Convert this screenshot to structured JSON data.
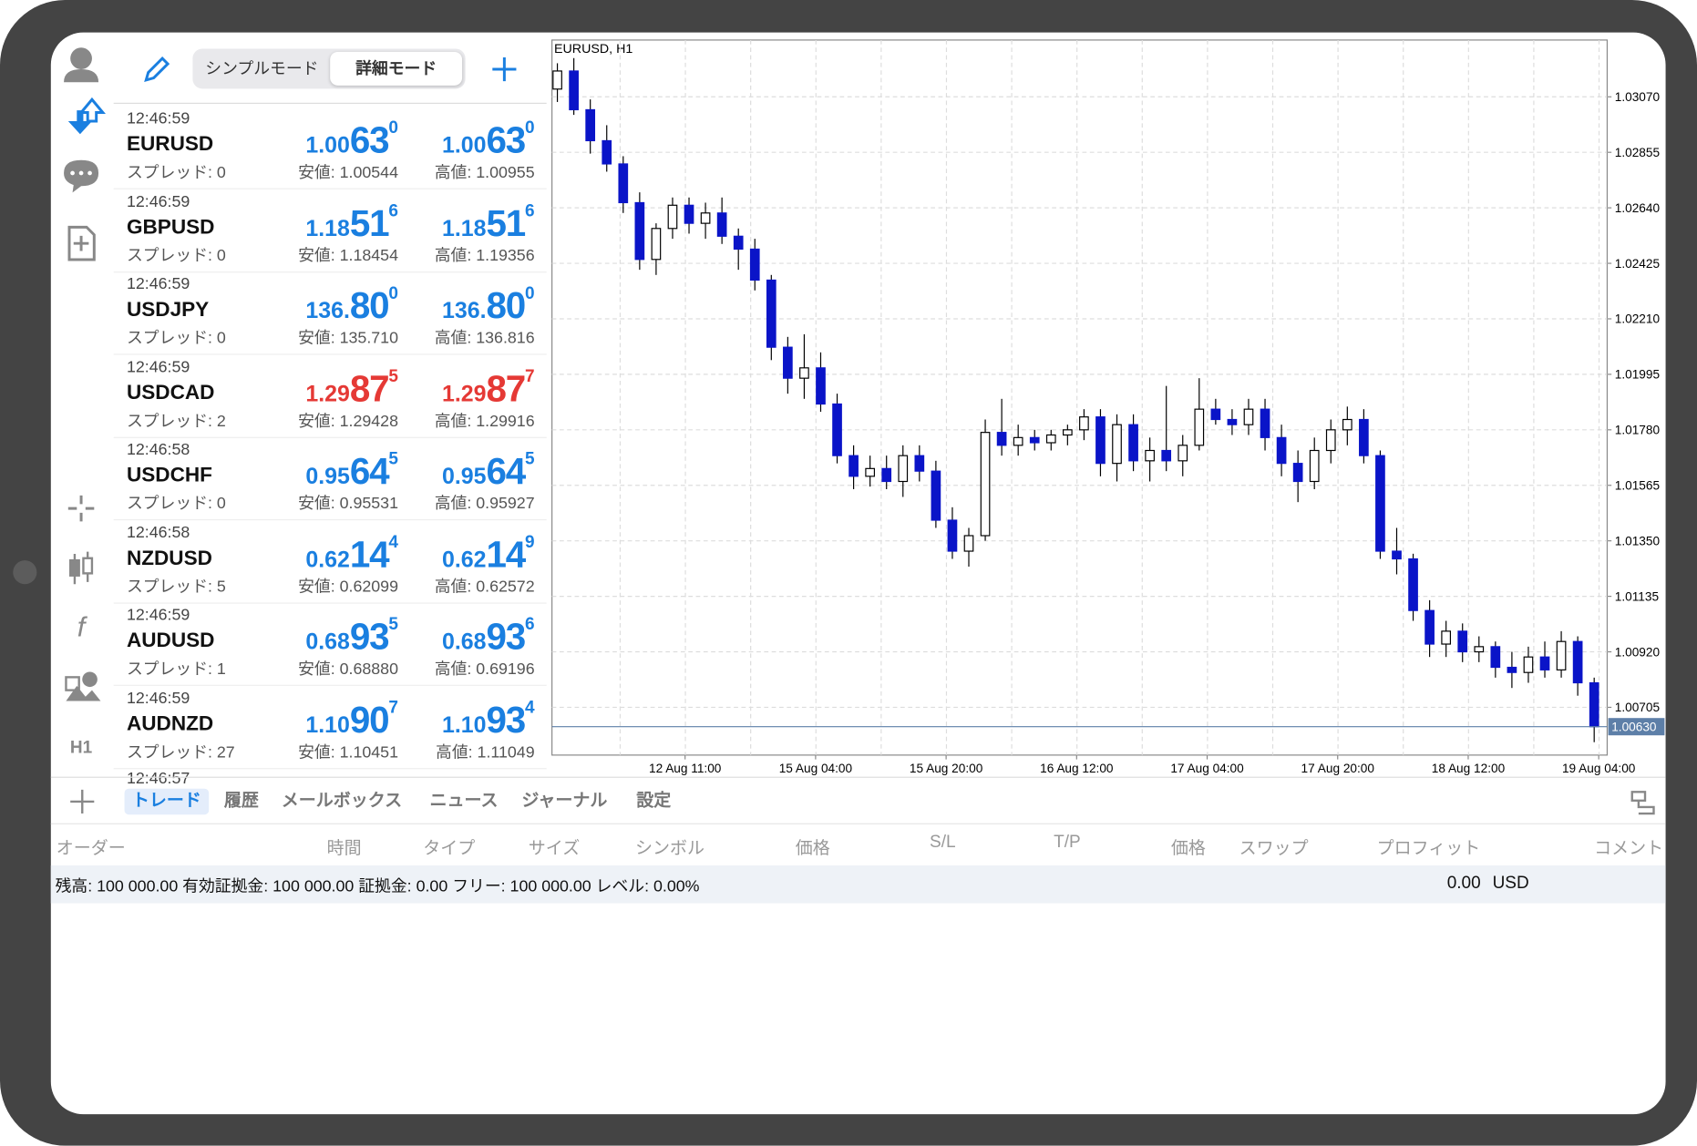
{
  "header": {
    "modes": [
      "シンプルモード",
      "詳細モード"
    ],
    "active_mode": 1
  },
  "quotes": [
    {
      "time": "12:46:59",
      "symbol": "EURUSD",
      "spread": "スプレッド: 0",
      "bid": {
        "pre": "1.00",
        "big": "63",
        "sup": "0"
      },
      "ask": {
        "pre": "1.00",
        "big": "63",
        "sup": "0"
      },
      "low": "安値: 1.00544",
      "high": "高値: 1.00955",
      "color": "#1a7fe0"
    },
    {
      "time": "12:46:59",
      "symbol": "GBPUSD",
      "spread": "スプレッド: 0",
      "bid": {
        "pre": "1.18",
        "big": "51",
        "sup": "6"
      },
      "ask": {
        "pre": "1.18",
        "big": "51",
        "sup": "6"
      },
      "low": "安値: 1.18454",
      "high": "高値: 1.19356",
      "color": "#1a7fe0"
    },
    {
      "time": "12:46:59",
      "symbol": "USDJPY",
      "spread": "スプレッド: 0",
      "bid": {
        "pre": "136.",
        "big": "80",
        "sup": "0"
      },
      "ask": {
        "pre": "136.",
        "big": "80",
        "sup": "0"
      },
      "low": "安値: 135.710",
      "high": "高値: 136.816",
      "color": "#1a7fe0"
    },
    {
      "time": "12:46:59",
      "symbol": "USDCAD",
      "spread": "スプレッド: 2",
      "bid": {
        "pre": "1.29",
        "big": "87",
        "sup": "5"
      },
      "ask": {
        "pre": "1.29",
        "big": "87",
        "sup": "7"
      },
      "low": "安値: 1.29428",
      "high": "高値: 1.29916",
      "color": "#e53935"
    },
    {
      "time": "12:46:58",
      "symbol": "USDCHF",
      "spread": "スプレッド: 0",
      "bid": {
        "pre": "0.95",
        "big": "64",
        "sup": "5"
      },
      "ask": {
        "pre": "0.95",
        "big": "64",
        "sup": "5"
      },
      "low": "安値: 0.95531",
      "high": "高値: 0.95927",
      "color": "#1a7fe0"
    },
    {
      "time": "12:46:58",
      "symbol": "NZDUSD",
      "spread": "スプレッド: 5",
      "bid": {
        "pre": "0.62",
        "big": "14",
        "sup": "4"
      },
      "ask": {
        "pre": "0.62",
        "big": "14",
        "sup": "9"
      },
      "low": "安値: 0.62099",
      "high": "高値: 0.62572",
      "color": "#1a7fe0"
    },
    {
      "time": "12:46:59",
      "symbol": "AUDUSD",
      "spread": "スプレッド: 1",
      "bid": {
        "pre": "0.68",
        "big": "93",
        "sup": "5"
      },
      "ask": {
        "pre": "0.68",
        "big": "93",
        "sup": "6"
      },
      "low": "安値: 0.68880",
      "high": "高値: 0.69196",
      "color": "#1a7fe0"
    },
    {
      "time": "12:46:59",
      "symbol": "AUDNZD",
      "spread": "スプレッド: 27",
      "bid": {
        "pre": "1.10",
        "big": "90",
        "sup": "7"
      },
      "ask": {
        "pre": "1.10",
        "big": "93",
        "sup": "4"
      },
      "low": "安値: 1.10451",
      "high": "高値: 1.11049",
      "color": "#1a7fe0"
    }
  ],
  "partial_time": "12:46:57",
  "left_toolbar": {
    "timeframe": "H1"
  },
  "chart_data": {
    "type": "candlestick",
    "title": "EURUSD, H1",
    "ohlc": [
      [
        1.031,
        1.032,
        1.0305,
        1.0317
      ],
      [
        1.0317,
        1.0322,
        1.03,
        1.0302
      ],
      [
        1.0302,
        1.0306,
        1.0285,
        1.029
      ],
      [
        1.029,
        1.0296,
        1.0278,
        1.0281
      ],
      [
        1.0281,
        1.0284,
        1.0262,
        1.0266
      ],
      [
        1.0266,
        1.027,
        1.024,
        1.0244
      ],
      [
        1.0244,
        1.0258,
        1.0238,
        1.0256
      ],
      [
        1.0256,
        1.0268,
        1.0252,
        1.0265
      ],
      [
        1.0265,
        1.0268,
        1.0254,
        1.0258
      ],
      [
        1.0258,
        1.0266,
        1.0252,
        1.0262
      ],
      [
        1.0262,
        1.0268,
        1.025,
        1.0253
      ],
      [
        1.0253,
        1.0256,
        1.024,
        1.0248
      ],
      [
        1.0248,
        1.0252,
        1.0232,
        1.0236
      ],
      [
        1.0236,
        1.0238,
        1.0205,
        1.021
      ],
      [
        1.021,
        1.0214,
        1.0192,
        1.0198
      ],
      [
        1.0198,
        1.0215,
        1.019,
        1.0202
      ],
      [
        1.0202,
        1.0208,
        1.0185,
        1.0188
      ],
      [
        1.0188,
        1.0192,
        1.0165,
        1.0168
      ],
      [
        1.0168,
        1.0172,
        1.0155,
        1.016
      ],
      [
        1.016,
        1.0168,
        1.0156,
        1.0163
      ],
      [
        1.0163,
        1.0168,
        1.0155,
        1.0158
      ],
      [
        1.0158,
        1.0172,
        1.0152,
        1.0168
      ],
      [
        1.0168,
        1.0172,
        1.0158,
        1.0162
      ],
      [
        1.0162,
        1.0166,
        1.014,
        1.0143
      ],
      [
        1.0143,
        1.0148,
        1.0128,
        1.0131
      ],
      [
        1.0131,
        1.014,
        1.0125,
        1.0137
      ],
      [
        1.0137,
        1.0182,
        1.0135,
        1.0177
      ],
      [
        1.0177,
        1.019,
        1.0168,
        1.0172
      ],
      [
        1.0172,
        1.018,
        1.0168,
        1.0175
      ],
      [
        1.0175,
        1.0178,
        1.017,
        1.0173
      ],
      [
        1.0173,
        1.0178,
        1.017,
        1.0176
      ],
      [
        1.0176,
        1.018,
        1.0172,
        1.0178
      ],
      [
        1.0178,
        1.0186,
        1.0174,
        1.0183
      ],
      [
        1.0183,
        1.0186,
        1.016,
        1.0165
      ],
      [
        1.0165,
        1.0184,
        1.0158,
        1.018
      ],
      [
        1.018,
        1.0184,
        1.0162,
        1.0166
      ],
      [
        1.0166,
        1.0175,
        1.0158,
        1.017
      ],
      [
        1.017,
        1.0195,
        1.0162,
        1.0166
      ],
      [
        1.0166,
        1.0176,
        1.016,
        1.0172
      ],
      [
        1.0172,
        1.0198,
        1.017,
        1.0186
      ],
      [
        1.0186,
        1.019,
        1.018,
        1.0182
      ],
      [
        1.0182,
        1.0186,
        1.0176,
        1.018
      ],
      [
        1.018,
        1.019,
        1.0176,
        1.0186
      ],
      [
        1.0186,
        1.019,
        1.017,
        1.0175
      ],
      [
        1.0175,
        1.018,
        1.016,
        1.0165
      ],
      [
        1.0165,
        1.017,
        1.015,
        1.0158
      ],
      [
        1.0158,
        1.0175,
        1.0155,
        1.017
      ],
      [
        1.017,
        1.0182,
        1.0165,
        1.0178
      ],
      [
        1.0178,
        1.0187,
        1.0172,
        1.0182
      ],
      [
        1.0182,
        1.0186,
        1.0165,
        1.0168
      ],
      [
        1.0168,
        1.017,
        1.0128,
        1.0131
      ],
      [
        1.0131,
        1.014,
        1.0122,
        1.0128
      ],
      [
        1.0128,
        1.013,
        1.0104,
        1.0108
      ],
      [
        1.0108,
        1.0112,
        1.009,
        1.0095
      ],
      [
        1.0095,
        1.0104,
        1.009,
        1.01
      ],
      [
        1.01,
        1.0103,
        1.0088,
        1.0092
      ],
      [
        1.0092,
        1.0098,
        1.0088,
        1.0094
      ],
      [
        1.0094,
        1.0096,
        1.0082,
        1.0086
      ],
      [
        1.0086,
        1.0092,
        1.0078,
        1.0084
      ],
      [
        1.0084,
        1.0094,
        1.008,
        1.009
      ],
      [
        1.009,
        1.0096,
        1.0082,
        1.0085
      ],
      [
        1.0085,
        1.01,
        1.0082,
        1.0096
      ],
      [
        1.0096,
        1.0098,
        1.0075,
        1.008
      ],
      [
        1.008,
        1.0082,
        1.0057,
        1.0063
      ]
    ],
    "x_labels": [
      "12 Aug 11:00",
      "15 Aug 04:00",
      "15 Aug 20:00",
      "16 Aug 12:00",
      "17 Aug 04:00",
      "17 Aug 20:00",
      "18 Aug 12:00",
      "19 Aug 04:00"
    ],
    "ylim": [
      1.0052,
      1.0329
    ],
    "yticks": [
      {
        "value": 1.0307,
        "label": "1.03070"
      },
      {
        "value": 1.02855,
        "label": "1.02855"
      },
      {
        "value": 1.0264,
        "label": "1.02640"
      },
      {
        "value": 1.02425,
        "label": "1.02425"
      },
      {
        "value": 1.0221,
        "label": "1.02210"
      },
      {
        "value": 1.01995,
        "label": "1.01995"
      },
      {
        "value": 1.0178,
        "label": "1.01780"
      },
      {
        "value": 1.01565,
        "label": "1.01565"
      },
      {
        "value": 1.0135,
        "label": "1.01350"
      },
      {
        "value": 1.01135,
        "label": "1.01135"
      },
      {
        "value": 1.0092,
        "label": "1.00920"
      },
      {
        "value": 1.00705,
        "label": "1.00705"
      }
    ],
    "last_price": {
      "value": 1.0063,
      "label": "1.00630"
    },
    "up_color": "#ffffff",
    "down_color": "#0a14c8",
    "grid": true
  },
  "tabs": [
    "トレード",
    "履歴",
    "メールボックス",
    "ニュース",
    "ジャーナル",
    "設定"
  ],
  "active_tab": 0,
  "columns": [
    "オーダー",
    "時間",
    "タイプ",
    "サイズ",
    "シンボル",
    "価格",
    "S/L",
    "T/P",
    "価格",
    "スワップ",
    "プロフィット",
    "コメント"
  ],
  "balance": {
    "summary": "残高: 100 000.00 有効証拠金: 100 000.00 証拠金: 0.00 フリー: 100 000.00 レベル: 0.00%",
    "profit": "0.00",
    "currency": "USD"
  }
}
